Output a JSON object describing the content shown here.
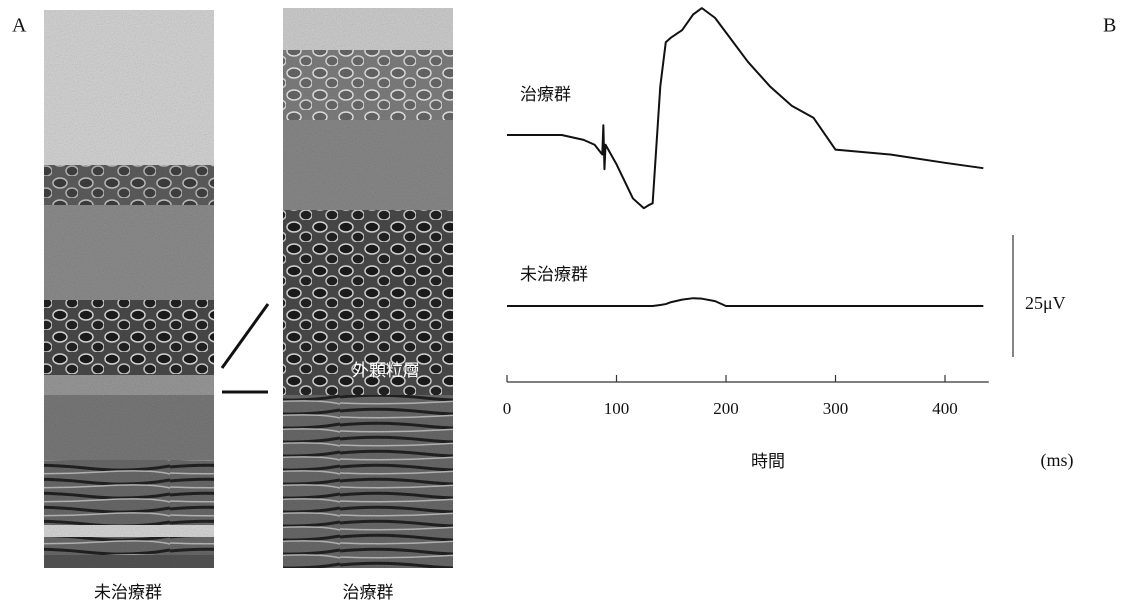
{
  "panel_labels": [
    "A",
    "B"
  ],
  "histology": {
    "captions": [
      "未治療群",
      "治療群"
    ],
    "annotation": "外顆粒層"
  },
  "chart_data": {
    "type": "line",
    "x_label": "時間",
    "x_unit": "(ms)",
    "xlim": [
      0,
      440
    ],
    "xticks": [
      0,
      100,
      200,
      300,
      400
    ],
    "x": [
      0,
      50,
      70,
      80,
      87,
      88,
      89,
      90,
      100,
      115,
      125,
      130,
      133,
      140,
      145,
      150,
      160,
      170,
      178,
      190,
      200,
      220,
      240,
      260,
      280,
      300,
      350,
      400,
      435
    ],
    "series": [
      {
        "name": "治療群",
        "color": "#111111",
        "values": [
          0,
          0,
          -1,
          -2,
          -4,
          2,
          -7,
          -2,
          -6,
          -13,
          -15,
          -14.3,
          -14,
          10,
          19,
          20,
          21.5,
          24.7,
          26,
          24,
          21,
          15,
          10,
          6,
          3.5,
          -3,
          -4,
          -5.7,
          -6.8
        ]
      },
      {
        "name": "未治療群",
        "color": "#111111",
        "values": [
          0,
          0,
          0,
          0,
          0,
          0,
          0,
          0,
          0,
          0,
          0,
          0,
          0,
          0.2,
          0.4,
          0.8,
          1.3,
          1.6,
          1.5,
          1,
          0,
          0,
          0,
          0,
          0,
          0,
          0,
          0,
          0
        ]
      }
    ],
    "scale_bar": {
      "value": 25,
      "label": "25μV"
    }
  }
}
